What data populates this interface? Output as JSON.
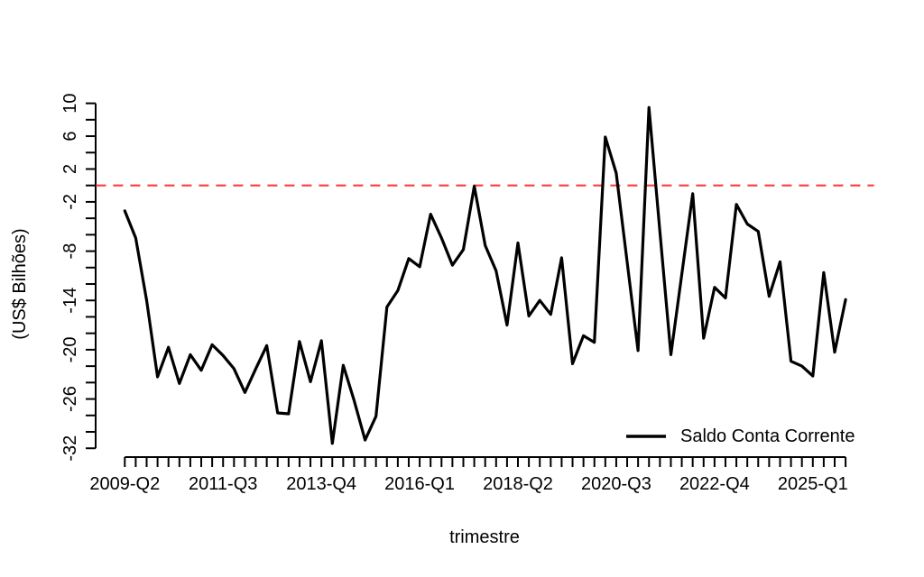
{
  "chart_data": {
    "type": "line",
    "title": "",
    "xlabel": "trimestre",
    "ylabel": "(US$ Bilhões)",
    "grid": false,
    "legend": {
      "position": "bottom-right",
      "border": "none",
      "entries": [
        {
          "label": "Saldo Conta Corrente",
          "color": "#000000"
        }
      ]
    },
    "x": [
      "2009-Q2",
      "2009-Q3",
      "2009-Q4",
      "2010-Q1",
      "2010-Q2",
      "2010-Q3",
      "2010-Q4",
      "2011-Q1",
      "2011-Q2",
      "2011-Q3",
      "2011-Q4",
      "2012-Q1",
      "2012-Q2",
      "2012-Q3",
      "2012-Q4",
      "2013-Q1",
      "2013-Q2",
      "2013-Q3",
      "2013-Q4",
      "2014-Q1",
      "2014-Q2",
      "2014-Q3",
      "2014-Q4",
      "2015-Q1",
      "2015-Q2",
      "2015-Q3",
      "2015-Q4",
      "2016-Q1",
      "2016-Q2",
      "2016-Q3",
      "2016-Q4",
      "2017-Q1",
      "2017-Q2",
      "2017-Q3",
      "2017-Q4",
      "2018-Q1",
      "2018-Q2",
      "2018-Q3",
      "2018-Q4",
      "2019-Q1",
      "2019-Q2",
      "2019-Q3",
      "2019-Q4",
      "2020-Q1",
      "2020-Q2",
      "2020-Q3",
      "2020-Q4",
      "2021-Q1",
      "2021-Q2",
      "2021-Q3",
      "2021-Q4",
      "2022-Q1",
      "2022-Q2",
      "2022-Q3",
      "2022-Q4",
      "2023-Q1",
      "2023-Q2",
      "2023-Q3",
      "2023-Q4",
      "2024-Q1",
      "2024-Q2",
      "2024-Q3",
      "2024-Q4",
      "2025-Q1",
      "2025-Q2",
      "2025-Q3",
      "2025-Q4"
    ],
    "series": [
      {
        "name": "Saldo Conta Corrente",
        "color": "#000000",
        "values": [
          -3.1,
          -6.4,
          -14.0,
          -23.3,
          -19.7,
          -24.1,
          -20.6,
          -22.5,
          -19.4,
          -20.7,
          -22.3,
          -25.2,
          -22.3,
          -19.5,
          -27.7,
          -27.8,
          -19.0,
          -23.9,
          -18.9,
          -31.4,
          -21.9,
          -26.2,
          -31.0,
          -28.1,
          -14.8,
          -12.8,
          -8.9,
          -9.9,
          -3.5,
          -6.4,
          -9.7,
          -7.8,
          -0.1,
          -7.3,
          -10.4,
          -17.0,
          -7.0,
          -15.9,
          -14.0,
          -15.7,
          -8.8,
          -21.7,
          -18.3,
          -19.1,
          5.9,
          1.5,
          -9.3,
          -20.1,
          9.5,
          -5.6,
          -20.6,
          -10.8,
          -1.0,
          -18.6,
          -12.4,
          -13.7,
          -2.3,
          -4.7,
          -5.6,
          -13.5,
          -9.3,
          -21.4,
          -22.0,
          -23.2,
          -10.6,
          -20.3,
          -13.9
        ]
      }
    ],
    "x_axis": {
      "tick_label_every": 9,
      "shown_tick_labels": [
        "2009-Q2",
        "2011-Q3",
        "2013-Q4",
        "2016-Q1",
        "2018-Q2",
        "2020-Q3",
        "2022-Q4",
        "2025-Q1"
      ]
    },
    "y_axis": {
      "tick_step": 2,
      "tick_range": [
        -32,
        10
      ],
      "shown_tick_labels": [
        "10",
        "6",
        "2",
        "-2",
        "-8",
        "-14",
        "-20",
        "-26",
        "-32"
      ],
      "labels_rotated": true
    },
    "ylim": [
      -33.1,
      11.2
    ],
    "reference_line": {
      "y": 0,
      "color": "#fc3d3d",
      "style": "dashed"
    }
  }
}
